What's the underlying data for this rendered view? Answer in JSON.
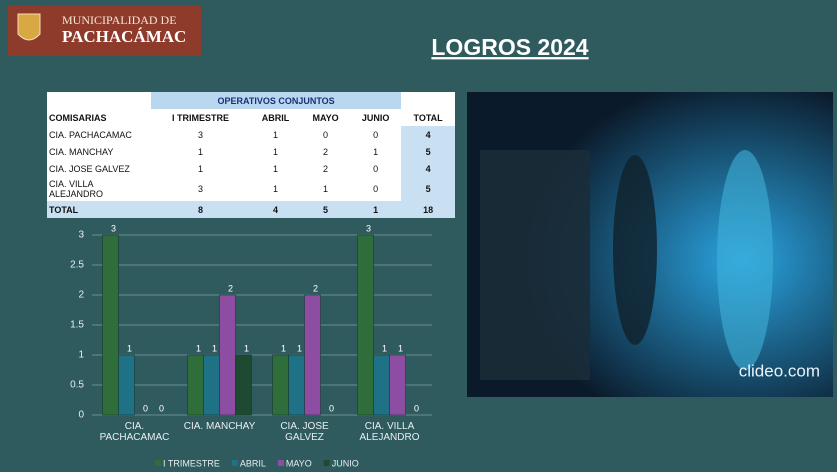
{
  "header": {
    "org_line1": "MUNICIPALIDAD DE",
    "org_line2": "PACHACÁMAC",
    "title": "LOGROS 2024"
  },
  "table": {
    "caption": "OPERATIVOS CONJUNTOS",
    "columns": [
      "COMISARIAS",
      "I TRIMESTRE",
      "ABRIL",
      "MAYO",
      "JUNIO",
      "TOTAL"
    ],
    "rows": [
      [
        "CIA. PACHACAMAC",
        3,
        1,
        0,
        0,
        4
      ],
      [
        "CIA. MANCHAY",
        1,
        1,
        2,
        1,
        5
      ],
      [
        "CIA. JOSE GALVEZ",
        1,
        1,
        2,
        0,
        4
      ],
      [
        "CIA. VILLA ALEJANDRO",
        3,
        1,
        1,
        0,
        5
      ],
      [
        "TOTAL",
        8,
        4,
        5,
        1,
        18
      ]
    ]
  },
  "chart_data": {
    "type": "bar",
    "categories": [
      "CIA. PACHACAMAC",
      "CIA. MANCHAY",
      "CIA. JOSE GALVEZ",
      "CIA. VILLA ALEJANDRO"
    ],
    "series": [
      {
        "name": "I TRIMESTRE",
        "color": "#2f6e3b",
        "values": [
          3,
          1,
          1,
          3
        ]
      },
      {
        "name": "ABRIL",
        "color": "#1f7185",
        "values": [
          1,
          1,
          1,
          1
        ]
      },
      {
        "name": "MAYO",
        "color": "#8c4da3",
        "values": [
          0,
          2,
          2,
          1
        ]
      },
      {
        "name": "JUNIO",
        "color": "#1f4a32",
        "values": [
          0,
          1,
          0,
          0
        ]
      }
    ],
    "ylim": [
      0,
      3
    ],
    "yticks": [
      0,
      0.5,
      1,
      1.5,
      2,
      2.5,
      3
    ],
    "grid": true
  },
  "photo": {
    "watermark": "clideo.com"
  }
}
